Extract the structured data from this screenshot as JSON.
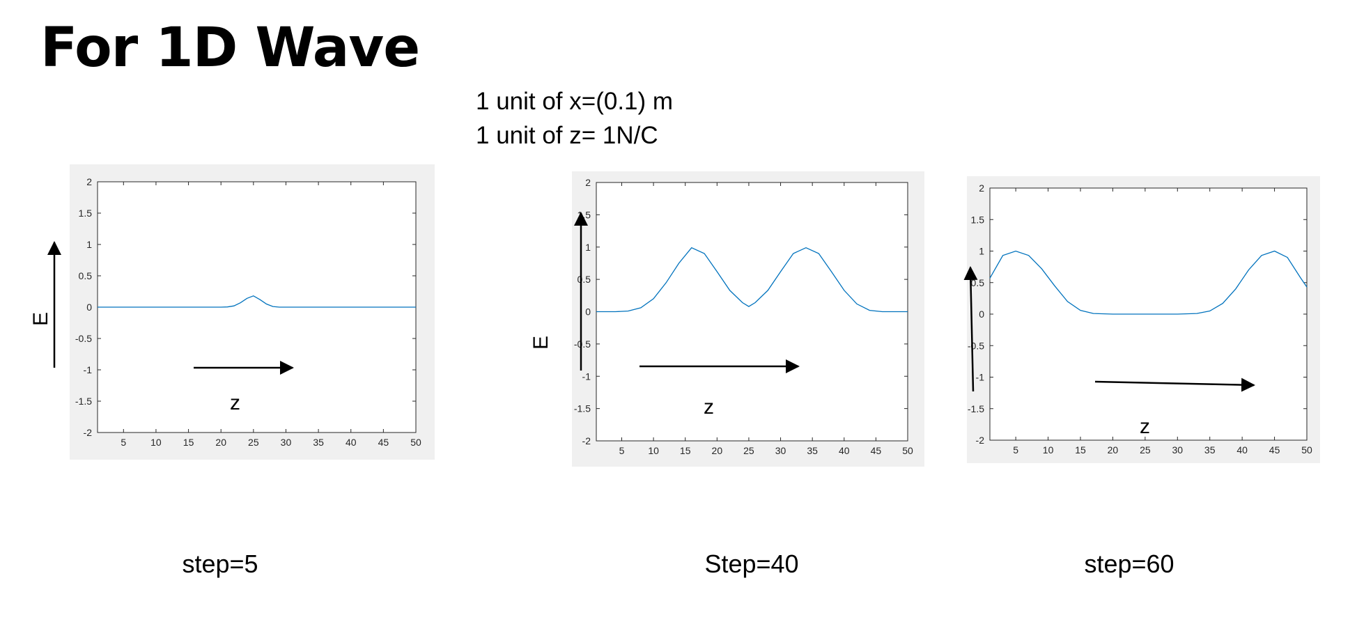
{
  "slide": {
    "title": "For 1D Wave",
    "notes": [
      "1 unit of x=(0.1) m",
      "1 unit of z= 1N/C"
    ]
  },
  "chart_data": [
    {
      "type": "line",
      "caption": "step=5",
      "y_annotation": "E",
      "x_annotation": "z",
      "xlim": [
        1,
        50
      ],
      "ylim": [
        -2,
        2
      ],
      "x_ticks": [
        5,
        10,
        15,
        20,
        25,
        30,
        35,
        40,
        45,
        50
      ],
      "y_ticks": [
        -2,
        -1.5,
        -1,
        -0.5,
        0,
        0.5,
        1,
        1.5,
        2
      ],
      "grid": false,
      "series": [
        {
          "color": "#0072bd",
          "x": [
            1,
            5,
            10,
            15,
            20,
            21,
            22,
            23,
            24,
            25,
            26,
            27,
            28,
            29,
            30,
            35,
            40,
            45,
            50
          ],
          "y": [
            0,
            0,
            0,
            0,
            0,
            0.003,
            0.02,
            0.07,
            0.14,
            0.18,
            0.12,
            0.05,
            0.01,
            0,
            0,
            0,
            0,
            0,
            0
          ]
        }
      ]
    },
    {
      "type": "line",
      "caption": "Step=40",
      "y_annotation": "E",
      "x_annotation": "z",
      "xlim": [
        1,
        50
      ],
      "ylim": [
        -2,
        2
      ],
      "x_ticks": [
        5,
        10,
        15,
        20,
        25,
        30,
        35,
        40,
        45,
        50
      ],
      "y_ticks": [
        -2,
        -1.5,
        -1,
        -0.5,
        0,
        0.5,
        1,
        1.5,
        2
      ],
      "grid": false,
      "series": [
        {
          "color": "#0072bd",
          "x": [
            1,
            4,
            6,
            8,
            10,
            12,
            14,
            16,
            18,
            20,
            22,
            24,
            25,
            26,
            28,
            30,
            32,
            34,
            36,
            38,
            40,
            42,
            44,
            46,
            48,
            50
          ],
          "y": [
            0,
            0,
            0.01,
            0.06,
            0.2,
            0.45,
            0.75,
            0.99,
            0.9,
            0.62,
            0.33,
            0.14,
            0.08,
            0.14,
            0.33,
            0.62,
            0.9,
            0.99,
            0.9,
            0.62,
            0.33,
            0.12,
            0.02,
            0,
            0,
            0
          ]
        }
      ]
    },
    {
      "type": "line",
      "caption": "step=60",
      "y_annotation": "",
      "x_annotation": "z",
      "xlim": [
        1,
        50
      ],
      "ylim": [
        -2,
        2
      ],
      "x_ticks": [
        5,
        10,
        15,
        20,
        25,
        30,
        35,
        40,
        45,
        50
      ],
      "y_ticks": [
        -2,
        -1.5,
        -1,
        -0.5,
        0,
        0.5,
        1,
        1.5,
        2
      ],
      "grid": false,
      "series": [
        {
          "color": "#0072bd",
          "x": [
            1,
            3,
            5,
            7,
            9,
            11,
            13,
            15,
            17,
            20,
            25,
            30,
            33,
            35,
            37,
            39,
            41,
            43,
            45,
            47,
            49,
            50
          ],
          "y": [
            0.57,
            0.93,
            1.0,
            0.93,
            0.72,
            0.45,
            0.2,
            0.06,
            0.01,
            0,
            0,
            0,
            0.01,
            0.05,
            0.17,
            0.4,
            0.7,
            0.93,
            1.0,
            0.9,
            0.58,
            0.43
          ]
        }
      ]
    }
  ]
}
